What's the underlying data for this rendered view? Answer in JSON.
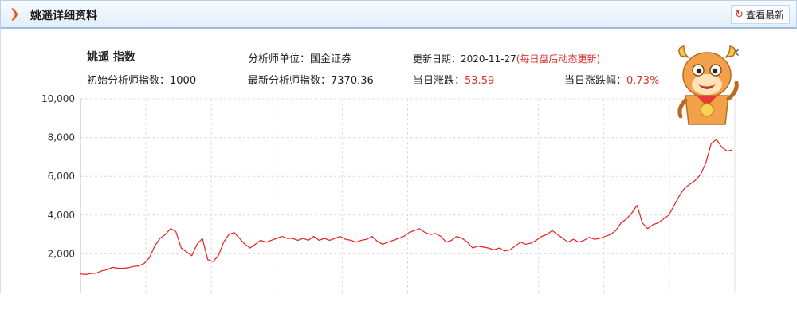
{
  "header": {
    "title": "姚遥详细资料",
    "refresh_label": "查看最新"
  },
  "info": {
    "name": "姚遥 指数",
    "unit_label": "分析师单位：",
    "unit_value": "国金证券",
    "update_label": "更新日期：",
    "update_date": "2020-11-27",
    "update_note": "(每日盘后动态更新)",
    "init_label": "初始分析师指数：",
    "init_value": "1000",
    "latest_label": "最新分析师指数：",
    "latest_value": "7370.36",
    "change_label": "当日涨跌：",
    "change_value": "53.59",
    "pct_label": "当日涨跌幅：",
    "pct_value": "0.73%"
  },
  "colors": {
    "line": "#e8201e",
    "red_text": "#e0302a",
    "accent": "#e8571e"
  },
  "icons": {
    "chevron": "chevron-right-icon",
    "refresh": "refresh-icon",
    "close": "close-icon",
    "mascot": "ox-mascot-icon"
  },
  "chart_data": {
    "type": "line",
    "ylim": [
      0,
      10000
    ],
    "yticks": [
      2000,
      4000,
      6000,
      8000,
      10000
    ],
    "ytick_labels": [
      "2,000",
      "4,000",
      "6,000",
      "8,000",
      "10,000"
    ],
    "grid": true,
    "series": [
      {
        "values": [
          960,
          930,
          980,
          1000,
          1120,
          1180,
          1300,
          1260,
          1250,
          1280,
          1350,
          1380,
          1500,
          1800,
          2400,
          2800,
          3000,
          3300,
          3150,
          2300,
          2100,
          1900,
          2500,
          2800,
          1700,
          1600,
          1900,
          2600,
          3000,
          3100,
          2800,
          2500,
          2300,
          2500,
          2700,
          2600,
          2700,
          2800,
          2900,
          2800,
          2800,
          2700,
          2800,
          2700,
          2900,
          2700,
          2800,
          2700,
          2800,
          2900,
          2750,
          2700,
          2600,
          2700,
          2750,
          2900,
          2650,
          2500,
          2600,
          2700,
          2800,
          2900,
          3100,
          3200,
          3300,
          3100,
          3000,
          3050,
          2900,
          2600,
          2700,
          2900,
          2800,
          2600,
          2300,
          2400,
          2350,
          2300,
          2200,
          2300,
          2150,
          2200,
          2400,
          2600,
          2500,
          2550,
          2700,
          2900,
          3000,
          3200,
          3000,
          2800,
          2600,
          2750,
          2600,
          2700,
          2850,
          2750,
          2800,
          2900,
          3000,
          3200,
          3600,
          3800,
          4100,
          4500,
          3600,
          3300,
          3500,
          3600,
          3800,
          4000,
          4500,
          5000,
          5400,
          5600,
          5800,
          6100,
          6700,
          7700,
          7900,
          7500,
          7300,
          7370
        ]
      }
    ]
  }
}
